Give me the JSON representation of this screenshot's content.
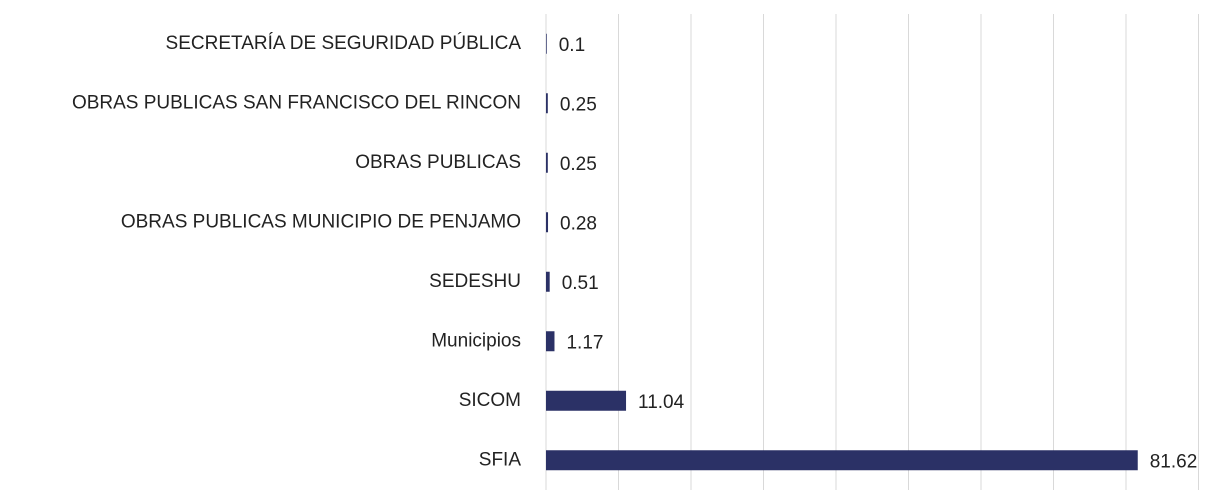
{
  "chart_data": {
    "type": "bar",
    "orientation": "horizontal",
    "categories": [
      "SECRETARÍA DE SEGURIDAD PÚBLICA",
      "OBRAS PUBLICAS SAN FRANCISCO DEL RINCON",
      "OBRAS PUBLICAS",
      "OBRAS PUBLICAS MUNICIPIO DE PENJAMO",
      "SEDESHU",
      "Municipios",
      "SICOM",
      "SFIA"
    ],
    "values": [
      0.1,
      0.25,
      0.25,
      0.28,
      0.51,
      1.17,
      11.04,
      81.62
    ],
    "color": "#2b3166",
    "xlim": [
      0,
      90
    ],
    "xticks": [
      0,
      10,
      20,
      30,
      40,
      50,
      60,
      70,
      80,
      90
    ],
    "grid": true
  }
}
